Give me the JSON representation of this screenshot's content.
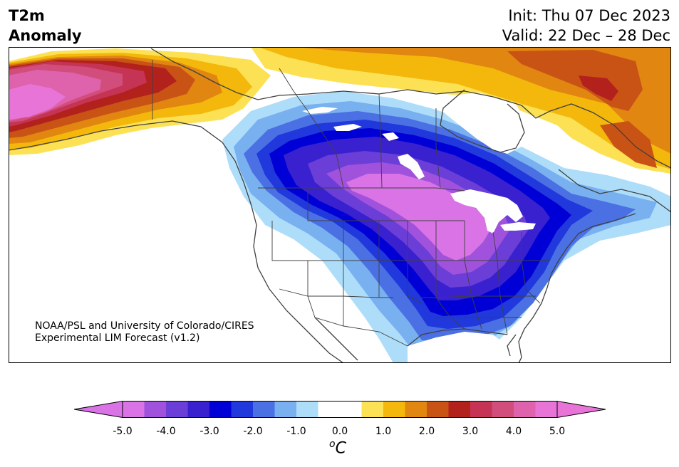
{
  "header": {
    "variable": "T2m",
    "subtitle": "Anomaly",
    "init": "Init: Thu 07 Dec 2023",
    "valid": "Valid: 22 Dec – 28 Dec"
  },
  "credit": {
    "line1": "NOAA/PSL and University of Colorado/CIRES",
    "line2": "Experimental LIM Forecast (v1.2)"
  },
  "map": {
    "region": "North America",
    "field": "2 m temperature anomaly",
    "features": [
      "coastlines",
      "country borders",
      "US state borders",
      "Canadian province borders",
      "Great Lakes"
    ],
    "pattern": "Cold anomaly (down to about -5 °C) centred over the northern Plains and Upper Midwest, extending to the Gulf Coast and Atlantic coast; warm anomaly (up to about +5 °C) over Alaska, northern Canada and Greenland"
  },
  "colorbar": {
    "unit_base": "C",
    "unit_sup": "o",
    "tick_labels": [
      "-5.0",
      "-4.0",
      "-3.0",
      "-2.0",
      "-1.0",
      "0.0",
      "1.0",
      "2.0",
      "3.0",
      "4.0",
      "5.0"
    ],
    "min": -5.0,
    "max": 5.0,
    "step": 0.5,
    "extend": "both",
    "colors": [
      "#d973e6",
      "#a052dc",
      "#6c3ed8",
      "#3a21cf",
      "#0000d6",
      "#2038dc",
      "#4a70e4",
      "#78b0f0",
      "#aeddfa",
      "#ffffff",
      "#ffffff",
      "#fde154",
      "#f3b80b",
      "#e08611",
      "#c85315",
      "#b3211d",
      "#c53454",
      "#d14e7c",
      "#df62ac",
      "#e874d8"
    ],
    "extend_low_color": "#d973e6",
    "extend_high_color": "#e874d8"
  }
}
